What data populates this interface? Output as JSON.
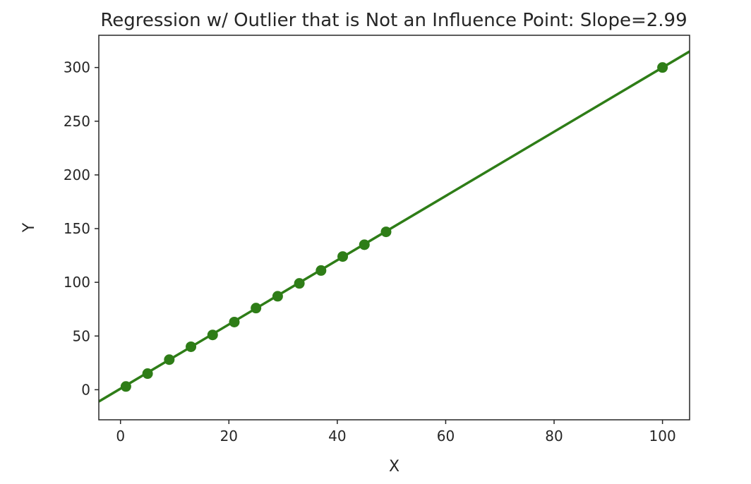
{
  "chart_data": {
    "type": "scatter",
    "title": "Regression w/ Outlier that is Not an Influence Point: Slope=2.99",
    "xlabel": "X",
    "ylabel": "Y",
    "xlim": [
      -4,
      105
    ],
    "ylim": [
      -28,
      330
    ],
    "xticks": [
      0,
      20,
      40,
      60,
      80,
      100
    ],
    "yticks": [
      0,
      50,
      100,
      150,
      200,
      250,
      300
    ],
    "grid": false,
    "color": "#2e7d17",
    "points": [
      {
        "x": 1,
        "y": 3
      },
      {
        "x": 5,
        "y": 15
      },
      {
        "x": 9,
        "y": 28
      },
      {
        "x": 13,
        "y": 40
      },
      {
        "x": 17,
        "y": 51
      },
      {
        "x": 21,
        "y": 63
      },
      {
        "x": 25,
        "y": 76
      },
      {
        "x": 29,
        "y": 87
      },
      {
        "x": 33,
        "y": 99
      },
      {
        "x": 37,
        "y": 111
      },
      {
        "x": 41,
        "y": 124
      },
      {
        "x": 45,
        "y": 135
      },
      {
        "x": 49,
        "y": 147
      },
      {
        "x": 100,
        "y": 300
      }
    ],
    "regression_line": {
      "slope": 2.99,
      "intercept": 1.0,
      "x_range": [
        -4,
        105
      ]
    }
  }
}
